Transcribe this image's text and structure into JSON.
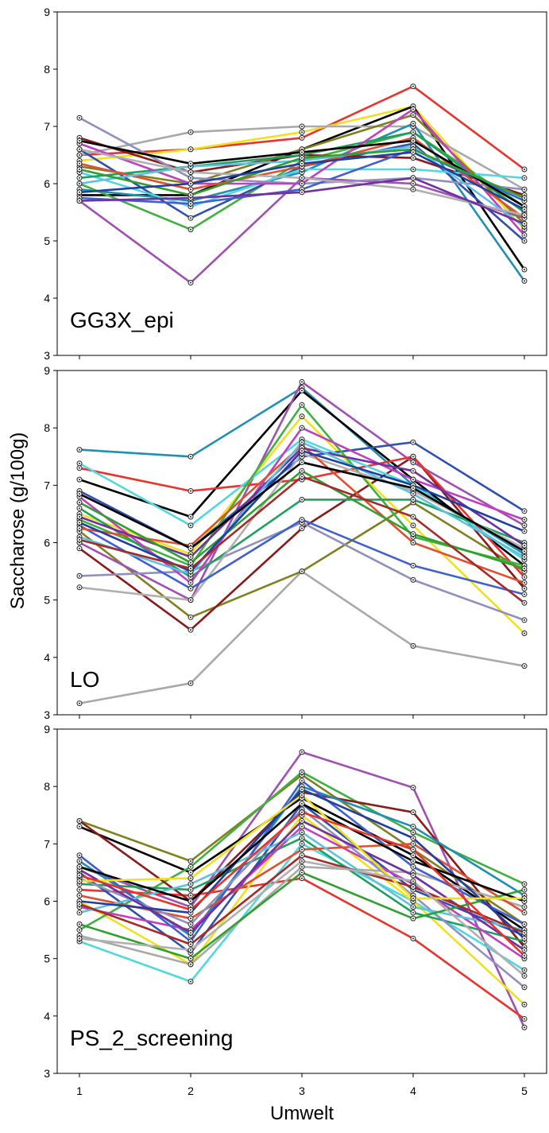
{
  "figure": {
    "ylabel": "Saccharose (g/100g)",
    "xlabel": "Umwelt"
  },
  "chart_data": [
    {
      "type": "line",
      "panel_label": "GG3X_epi",
      "x": [
        1,
        2,
        3,
        4,
        5
      ],
      "ylim": [
        3,
        9
      ],
      "yticks": [
        3,
        4,
        5,
        6,
        7,
        8,
        9
      ],
      "grid": false,
      "series": [
        {
          "color": "#e8342e",
          "values": [
            6.5,
            6.6,
            6.8,
            7.7,
            6.25
          ]
        },
        {
          "color": "#f0e020",
          "values": [
            6.4,
            6.6,
            6.9,
            7.35,
            5.2
          ]
        },
        {
          "color": "#000000",
          "values": [
            5.8,
            5.8,
            6.6,
            7.35,
            4.5
          ]
        },
        {
          "color": "#a9a9a9",
          "values": [
            6.5,
            6.9,
            7.0,
            7.0,
            5.9
          ]
        },
        {
          "color": "#2090b0",
          "values": [
            5.9,
            5.7,
            6.2,
            7.05,
            4.3
          ]
        },
        {
          "color": "#a050b0",
          "values": [
            5.7,
            4.27,
            6.1,
            6.0,
            5.4
          ]
        },
        {
          "color": "#40b040",
          "values": [
            6.0,
            5.2,
            6.4,
            6.9,
            5.6
          ]
        },
        {
          "color": "#3050b0",
          "values": [
            6.6,
            5.4,
            6.3,
            6.7,
            5.0
          ]
        },
        {
          "color": "#8b1a1a",
          "values": [
            6.8,
            6.2,
            6.5,
            6.45,
            5.8
          ]
        },
        {
          "color": "#50d8e0",
          "values": [
            6.2,
            5.6,
            6.25,
            6.25,
            6.1
          ]
        },
        {
          "color": "#808020",
          "values": [
            6.3,
            6.0,
            6.6,
            7.2,
            5.3
          ]
        },
        {
          "color": "#20a060",
          "values": [
            6.1,
            6.3,
            6.5,
            6.9,
            5.5
          ]
        },
        {
          "color": "#9090c0",
          "values": [
            7.15,
            6.1,
            6.0,
            6.1,
            5.9
          ]
        },
        {
          "color": "#c040c0",
          "values": [
            6.7,
            6.0,
            6.0,
            7.3,
            5.1
          ]
        },
        {
          "color": "#e05030",
          "values": [
            6.35,
            5.9,
            6.3,
            6.8,
            5.4
          ]
        },
        {
          "color": "#4060d0",
          "values": [
            5.75,
            5.65,
            5.9,
            6.6,
            5.7
          ]
        },
        {
          "color": "#60c0e0",
          "values": [
            6.0,
            6.3,
            6.4,
            6.65,
            5.25
          ]
        },
        {
          "color": "#b0b0b0",
          "values": [
            6.6,
            6.2,
            6.1,
            5.9,
            5.45
          ]
        },
        {
          "color": "#000000",
          "values": [
            6.75,
            6.35,
            6.55,
            6.75,
            5.6
          ]
        },
        {
          "color": "#7030a0",
          "values": [
            5.7,
            5.75,
            5.85,
            6.1,
            5.3
          ]
        },
        {
          "color": "#30a030",
          "values": [
            6.25,
            5.8,
            6.45,
            6.6,
            5.75
          ]
        },
        {
          "color": "#2040a0",
          "values": [
            5.85,
            6.0,
            6.35,
            6.55,
            5.55
          ]
        }
      ]
    },
    {
      "type": "line",
      "panel_label": "LO",
      "x": [
        1,
        2,
        3,
        4,
        5
      ],
      "ylim": [
        3,
        9
      ],
      "yticks": [
        3,
        4,
        5,
        6,
        7,
        8,
        9
      ],
      "grid": false,
      "series": [
        {
          "color": "#2090b0",
          "values": [
            7.62,
            7.5,
            8.7,
            7.0,
            5.8
          ]
        },
        {
          "color": "#a9a9a9",
          "values": [
            3.2,
            3.55,
            5.5,
            4.2,
            3.85
          ]
        },
        {
          "color": "#808020",
          "values": [
            6.2,
            4.7,
            5.5,
            6.7,
            5.5
          ]
        },
        {
          "color": "#8b1a1a",
          "values": [
            5.9,
            4.48,
            6.25,
            7.5,
            5.2
          ]
        },
        {
          "color": "#000000",
          "values": [
            7.1,
            6.45,
            8.65,
            7.1,
            5.6
          ]
        },
        {
          "color": "#a050b0",
          "values": [
            6.0,
            5.0,
            8.8,
            7.4,
            6.3
          ]
        },
        {
          "color": "#e8342e",
          "values": [
            7.3,
            6.9,
            7.1,
            7.5,
            5.4
          ]
        },
        {
          "color": "#f0e020",
          "values": [
            6.5,
            5.8,
            8.2,
            6.3,
            4.42
          ]
        },
        {
          "color": "#3050b0",
          "values": [
            6.9,
            5.9,
            7.5,
            7.75,
            6.55
          ]
        },
        {
          "color": "#50d8e0",
          "values": [
            7.38,
            6.3,
            7.8,
            7.0,
            5.7
          ]
        },
        {
          "color": "#9090c0",
          "values": [
            5.42,
            5.5,
            6.35,
            5.35,
            4.65
          ]
        },
        {
          "color": "#40b040",
          "values": [
            6.4,
            5.6,
            8.4,
            6.1,
            5.6
          ]
        },
        {
          "color": "#20a060",
          "values": [
            6.6,
            5.4,
            6.75,
            6.75,
            6.0
          ]
        },
        {
          "color": "#b0b0b0",
          "values": [
            5.22,
            5.0,
            7.55,
            6.9,
            5.9
          ]
        },
        {
          "color": "#4060d0",
          "values": [
            6.3,
            5.2,
            6.4,
            5.6,
            5.1
          ]
        },
        {
          "color": "#c040c0",
          "values": [
            6.8,
            5.3,
            8.0,
            7.1,
            6.4
          ]
        },
        {
          "color": "#e05030",
          "values": [
            6.25,
            5.95,
            7.7,
            6.0,
            5.3
          ]
        },
        {
          "color": "#7030a0",
          "values": [
            6.45,
            5.75,
            7.65,
            7.25,
            5.95
          ]
        },
        {
          "color": "#60c0e0",
          "values": [
            6.1,
            5.45,
            7.75,
            6.85,
            5.75
          ]
        },
        {
          "color": "#30a030",
          "values": [
            6.7,
            5.65,
            7.25,
            6.15,
            5.55
          ]
        },
        {
          "color": "#2040a0",
          "values": [
            6.35,
            5.5,
            7.6,
            7.0,
            6.2
          ]
        },
        {
          "color": "#000000",
          "values": [
            6.85,
            5.9,
            7.4,
            6.95,
            5.85
          ]
        },
        {
          "color": "#a52a2a",
          "values": [
            6.05,
            5.55,
            7.15,
            6.45,
            4.95
          ]
        }
      ]
    },
    {
      "type": "line",
      "panel_label": "PS_2_screening",
      "x": [
        1,
        2,
        3,
        4,
        5
      ],
      "xticks": [
        1,
        2,
        3,
        4,
        5
      ],
      "ylim": [
        3,
        9
      ],
      "yticks": [
        3,
        4,
        5,
        6,
        7,
        8,
        9
      ],
      "grid": false,
      "series": [
        {
          "color": "#a050b0",
          "values": [
            6.6,
            5.9,
            8.6,
            7.98,
            3.8
          ]
        },
        {
          "color": "#e8342e",
          "values": [
            6.2,
            6.1,
            6.4,
            5.35,
            3.95
          ]
        },
        {
          "color": "#000000",
          "values": [
            7.3,
            6.5,
            7.8,
            6.8,
            5.5
          ]
        },
        {
          "color": "#50d8e0",
          "values": [
            5.3,
            4.6,
            7.0,
            6.0,
            4.8
          ]
        },
        {
          "color": "#808020",
          "values": [
            7.4,
            6.7,
            8.2,
            6.9,
            5.6
          ]
        },
        {
          "color": "#f0e020",
          "values": [
            6.0,
            4.9,
            7.5,
            6.0,
            4.2
          ]
        },
        {
          "color": "#40b040",
          "values": [
            5.5,
            6.6,
            8.25,
            7.2,
            6.3
          ]
        },
        {
          "color": "#8b1a1a",
          "values": [
            7.4,
            6.0,
            7.9,
            7.55,
            5.2
          ]
        },
        {
          "color": "#3050b0",
          "values": [
            6.5,
            5.1,
            7.7,
            6.2,
            5.4
          ]
        },
        {
          "color": "#2090b0",
          "values": [
            6.7,
            5.4,
            8.0,
            7.3,
            6.1
          ]
        },
        {
          "color": "#a9a9a9",
          "values": [
            5.4,
            4.9,
            6.6,
            6.5,
            5.9
          ]
        },
        {
          "color": "#20a060",
          "values": [
            6.3,
            6.2,
            7.1,
            5.8,
            5.3
          ]
        },
        {
          "color": "#c040c0",
          "values": [
            5.9,
            5.5,
            7.3,
            6.3,
            5.0
          ]
        },
        {
          "color": "#4060d0",
          "values": [
            6.8,
            5.3,
            8.1,
            6.6,
            5.6
          ]
        },
        {
          "color": "#e05030",
          "values": [
            6.1,
            5.7,
            6.9,
            7.0,
            5.8
          ]
        },
        {
          "color": "#9090c0",
          "values": [
            6.4,
            5.6,
            7.6,
            6.1,
            4.5
          ]
        },
        {
          "color": "#60c0e0",
          "values": [
            5.8,
            6.3,
            7.2,
            5.9,
            5.5
          ]
        },
        {
          "color": "#30a030",
          "values": [
            5.6,
            5.0,
            6.5,
            5.7,
            6.2
          ]
        },
        {
          "color": "#7030a0",
          "values": [
            6.55,
            5.45,
            7.4,
            6.45,
            5.15
          ]
        },
        {
          "color": "#2040a0",
          "values": [
            6.0,
            5.8,
            7.95,
            7.1,
            5.35
          ]
        },
        {
          "color": "#000000",
          "values": [
            6.6,
            6.0,
            7.7,
            6.7,
            6.0
          ]
        },
        {
          "color": "#a52a2a",
          "values": [
            5.95,
            5.25,
            6.8,
            6.25,
            5.45
          ]
        },
        {
          "color": "#f0e020",
          "values": [
            6.35,
            6.4,
            7.85,
            6.05,
            6.05
          ]
        },
        {
          "color": "#e8342e",
          "values": [
            6.45,
            5.85,
            7.55,
            6.9,
            5.05
          ]
        },
        {
          "color": "#b0b0b0",
          "values": [
            5.35,
            5.15,
            6.7,
            6.35,
            4.7
          ]
        }
      ]
    }
  ]
}
